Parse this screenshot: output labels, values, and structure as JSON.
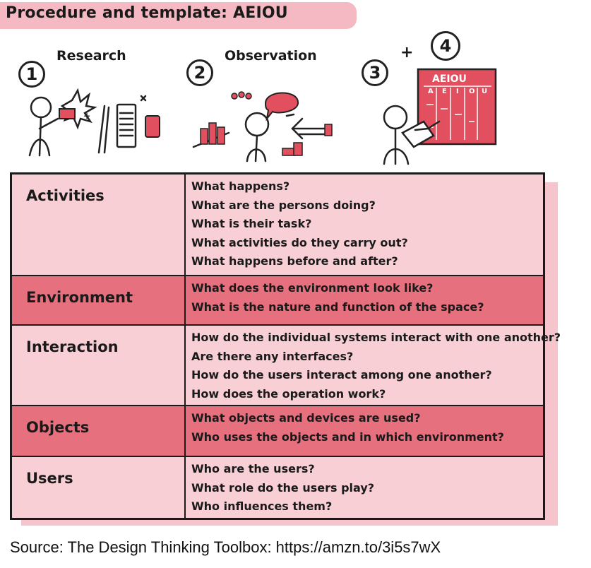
{
  "title": "Procedure and template: AEIOU",
  "steps": [
    {
      "number": "1",
      "label": "Research"
    },
    {
      "number": "2",
      "label": "Observation"
    },
    {
      "number": "3",
      "label": ""
    },
    {
      "number": "4",
      "label": ""
    }
  ],
  "plus": "+",
  "sheet_heading": "AEIOU",
  "sheet_letters": [
    "A",
    "E",
    "I",
    "O",
    "U"
  ],
  "colors": {
    "banner": "#f4b9c2",
    "row_light": "#f8cfd5",
    "row_dark": "#e6707e",
    "accent": "#e2505f"
  },
  "rows": [
    {
      "key": "Activities",
      "questions": [
        "What happens?",
        "What are the persons doing?",
        "What is their task?",
        "What activities do they carry out?",
        "What happens before and after?"
      ]
    },
    {
      "key": "Environment",
      "questions": [
        "What does the environment look like?",
        "What is the nature and function of the space?"
      ]
    },
    {
      "key": "Interaction",
      "questions": [
        "How do the individual systems interact with one another?",
        "Are there any interfaces?",
        "How do the users interact among one another?",
        "How does the operation work?"
      ]
    },
    {
      "key": "Objects",
      "questions": [
        "What objects and devices are used?",
        "Who uses the objects and in which environment?"
      ]
    },
    {
      "key": "Users",
      "questions": [
        "Who are the users?",
        "What role do the users play?",
        "Who influences them?"
      ]
    }
  ],
  "source": "Source: The Design Thinking Toolbox: https://amzn.to/3i5s7wX"
}
